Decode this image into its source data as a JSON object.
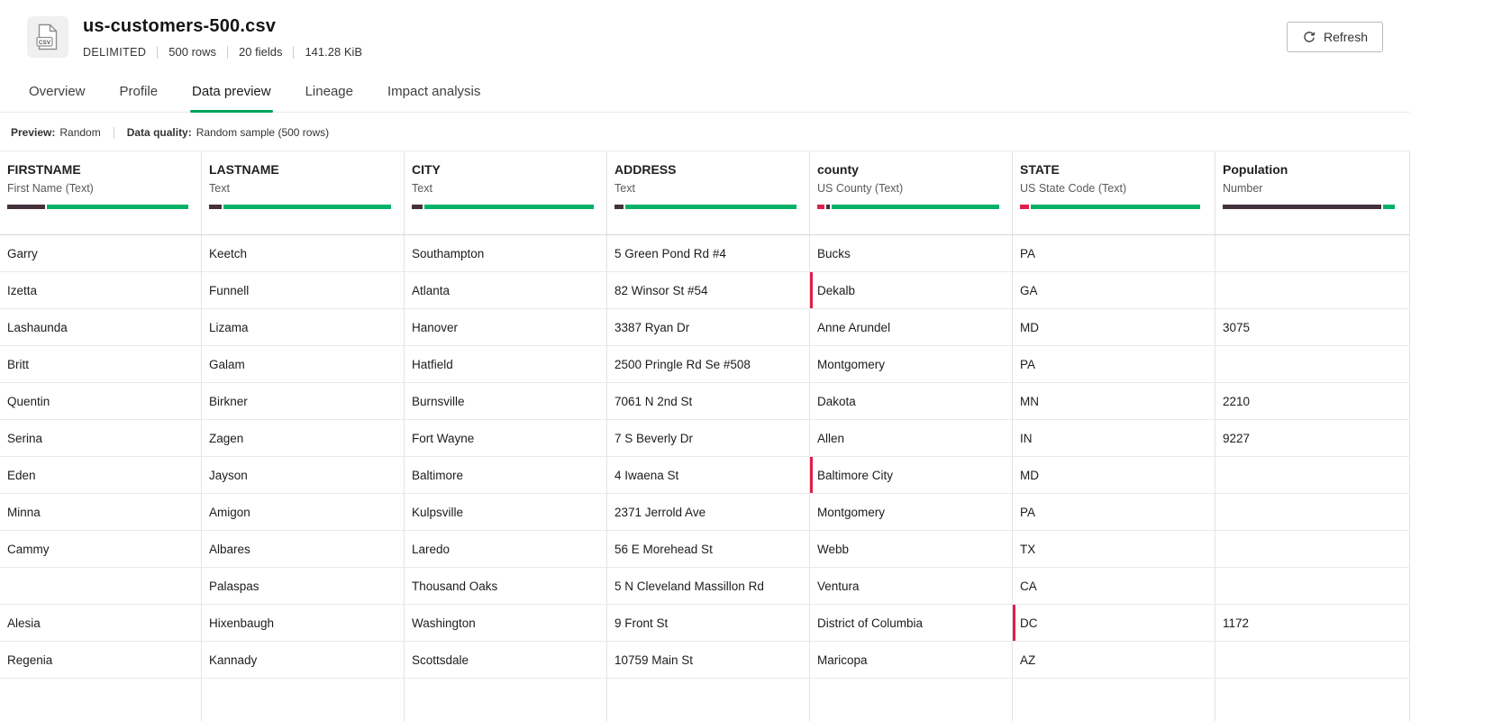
{
  "colors": {
    "accent_green": "#00a35c",
    "error_red": "#e01e49",
    "bar": {
      "dark": "#45313b",
      "green": "#00b268",
      "red": "#e01e49"
    }
  },
  "header": {
    "title": "us-customers-500.csv",
    "file_type_label": "CSV",
    "meta": [
      "DELIMITED",
      "500 rows",
      "20 fields",
      "141.28 KiB"
    ],
    "refresh_label": "Refresh"
  },
  "tabs": [
    {
      "label": "Overview",
      "active": false
    },
    {
      "label": "Profile",
      "active": false
    },
    {
      "label": "Data preview",
      "active": true
    },
    {
      "label": "Lineage",
      "active": false
    },
    {
      "label": "Impact analysis",
      "active": false
    }
  ],
  "preview_bar": {
    "preview_label": "Preview:",
    "preview_value": "Random",
    "quality_label": "Data quality:",
    "quality_value": "Random sample (500 rows)"
  },
  "table": {
    "columns": [
      {
        "name": "FIRSTNAME",
        "subtype": "First Name (Text)",
        "bar": [
          [
            "dark",
            21
          ],
          [
            "green",
            78
          ]
        ]
      },
      {
        "name": "LASTNAME",
        "subtype": "Text",
        "bar": [
          [
            "dark",
            7
          ],
          [
            "green",
            92
          ]
        ]
      },
      {
        "name": "CITY",
        "subtype": "Text",
        "bar": [
          [
            "dark",
            6
          ],
          [
            "green",
            93
          ]
        ]
      },
      {
        "name": "ADDRESS",
        "subtype": "Text",
        "bar": [
          [
            "dark",
            5
          ],
          [
            "green",
            94
          ]
        ]
      },
      {
        "name": "county",
        "subtype": "US County (Text)",
        "bar": [
          [
            "red",
            4
          ],
          [
            "dark",
            2
          ],
          [
            "green",
            92
          ]
        ]
      },
      {
        "name": "STATE",
        "subtype": "US State Code (Text)",
        "bar": [
          [
            "red",
            5
          ],
          [
            "green",
            93
          ]
        ]
      },
      {
        "name": "Population",
        "subtype": "Number",
        "bar": [
          [
            "dark",
            91
          ],
          [
            "green",
            7
          ]
        ]
      }
    ],
    "rows": [
      {
        "cells": [
          "Garry",
          "Keetch",
          "Southampton",
          "5 Green Pond Rd #4",
          "Bucks",
          "PA",
          ""
        ],
        "flags": []
      },
      {
        "cells": [
          "Izetta",
          "Funnell",
          "Atlanta",
          "82 Winsor St #54",
          "Dekalb",
          "GA",
          ""
        ],
        "flags": [
          4
        ]
      },
      {
        "cells": [
          "Lashaunda",
          "Lizama",
          "Hanover",
          "3387 Ryan Dr",
          "Anne Arundel",
          "MD",
          "3075"
        ],
        "flags": []
      },
      {
        "cells": [
          "Britt",
          "Galam",
          "Hatfield",
          "2500 Pringle Rd Se #508",
          "Montgomery",
          "PA",
          ""
        ],
        "flags": []
      },
      {
        "cells": [
          "Quentin",
          "Birkner",
          "Burnsville",
          "7061 N 2nd St",
          "Dakota",
          "MN",
          "2210"
        ],
        "flags": []
      },
      {
        "cells": [
          "Serina",
          "Zagen",
          "Fort Wayne",
          "7 S Beverly Dr",
          "Allen",
          "IN",
          "9227"
        ],
        "flags": []
      },
      {
        "cells": [
          "Eden",
          "Jayson",
          "Baltimore",
          "4 Iwaena St",
          "Baltimore City",
          "MD",
          ""
        ],
        "flags": [
          4
        ]
      },
      {
        "cells": [
          "Minna",
          "Amigon",
          "Kulpsville",
          "2371 Jerrold Ave",
          "Montgomery",
          "PA",
          ""
        ],
        "flags": []
      },
      {
        "cells": [
          "Cammy",
          "Albares",
          "Laredo",
          "56 E Morehead St",
          "Webb",
          "TX",
          ""
        ],
        "flags": []
      },
      {
        "cells": [
          "",
          "Palaspas",
          "Thousand Oaks",
          "5 N Cleveland Massillon Rd",
          "Ventura",
          "CA",
          ""
        ],
        "flags": []
      },
      {
        "cells": [
          "Alesia",
          "Hixenbaugh",
          "Washington",
          "9 Front St",
          "District of Columbia",
          "DC",
          "1172"
        ],
        "flags": [
          5
        ]
      },
      {
        "cells": [
          "Regenia",
          "Kannady",
          "Scottsdale",
          "10759 Main St",
          "Maricopa",
          "AZ",
          ""
        ],
        "flags": []
      }
    ]
  }
}
